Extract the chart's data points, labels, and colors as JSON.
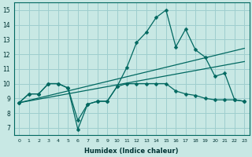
{
  "xlabel": "Humidex (Indice chaleur)",
  "xlim": [
    -0.5,
    23.5
  ],
  "ylim": [
    6.5,
    15.5
  ],
  "xticks": [
    0,
    1,
    2,
    3,
    4,
    5,
    6,
    7,
    8,
    9,
    10,
    11,
    12,
    13,
    14,
    15,
    16,
    17,
    18,
    19,
    20,
    21,
    22,
    23
  ],
  "yticks": [
    7,
    8,
    9,
    10,
    11,
    12,
    13,
    14,
    15
  ],
  "bg_color": "#c8e8e4",
  "grid_color": "#9ecece",
  "line_color": "#006860",
  "lines": [
    {
      "x": [
        0,
        1,
        2,
        3,
        4,
        5,
        6,
        7,
        8,
        9,
        10,
        11,
        12,
        13,
        14,
        15,
        16,
        17,
        18,
        19,
        20,
        21,
        22,
        23
      ],
      "y": [
        8.7,
        9.3,
        9.3,
        10.0,
        10.0,
        9.7,
        6.9,
        8.6,
        8.8,
        8.8,
        9.8,
        11.1,
        12.8,
        13.5,
        14.5,
        15.0,
        12.5,
        13.7,
        12.3,
        11.8,
        10.5,
        10.7,
        8.9,
        8.8
      ],
      "marker": "D",
      "markersize": 2.5,
      "linewidth": 0.9
    },
    {
      "x": [
        0,
        1,
        2,
        3,
        4,
        5,
        6,
        7,
        8,
        9,
        10,
        11,
        12,
        13,
        14,
        15,
        16,
        17,
        18,
        19,
        20,
        21,
        22,
        23
      ],
      "y": [
        8.7,
        9.3,
        9.3,
        10.0,
        10.0,
        9.7,
        7.5,
        8.6,
        8.8,
        8.8,
        9.8,
        10.0,
        10.0,
        10.0,
        10.0,
        10.0,
        9.5,
        9.3,
        9.2,
        9.0,
        8.9,
        8.9,
        8.9,
        8.8
      ],
      "marker": "D",
      "markersize": 2.5,
      "linewidth": 0.9
    },
    {
      "x": [
        0,
        23
      ],
      "y": [
        8.7,
        12.4
      ],
      "marker": null,
      "markersize": 0,
      "linewidth": 0.9
    },
    {
      "x": [
        0,
        23
      ],
      "y": [
        8.7,
        11.5
      ],
      "marker": null,
      "markersize": 0,
      "linewidth": 0.9
    }
  ]
}
